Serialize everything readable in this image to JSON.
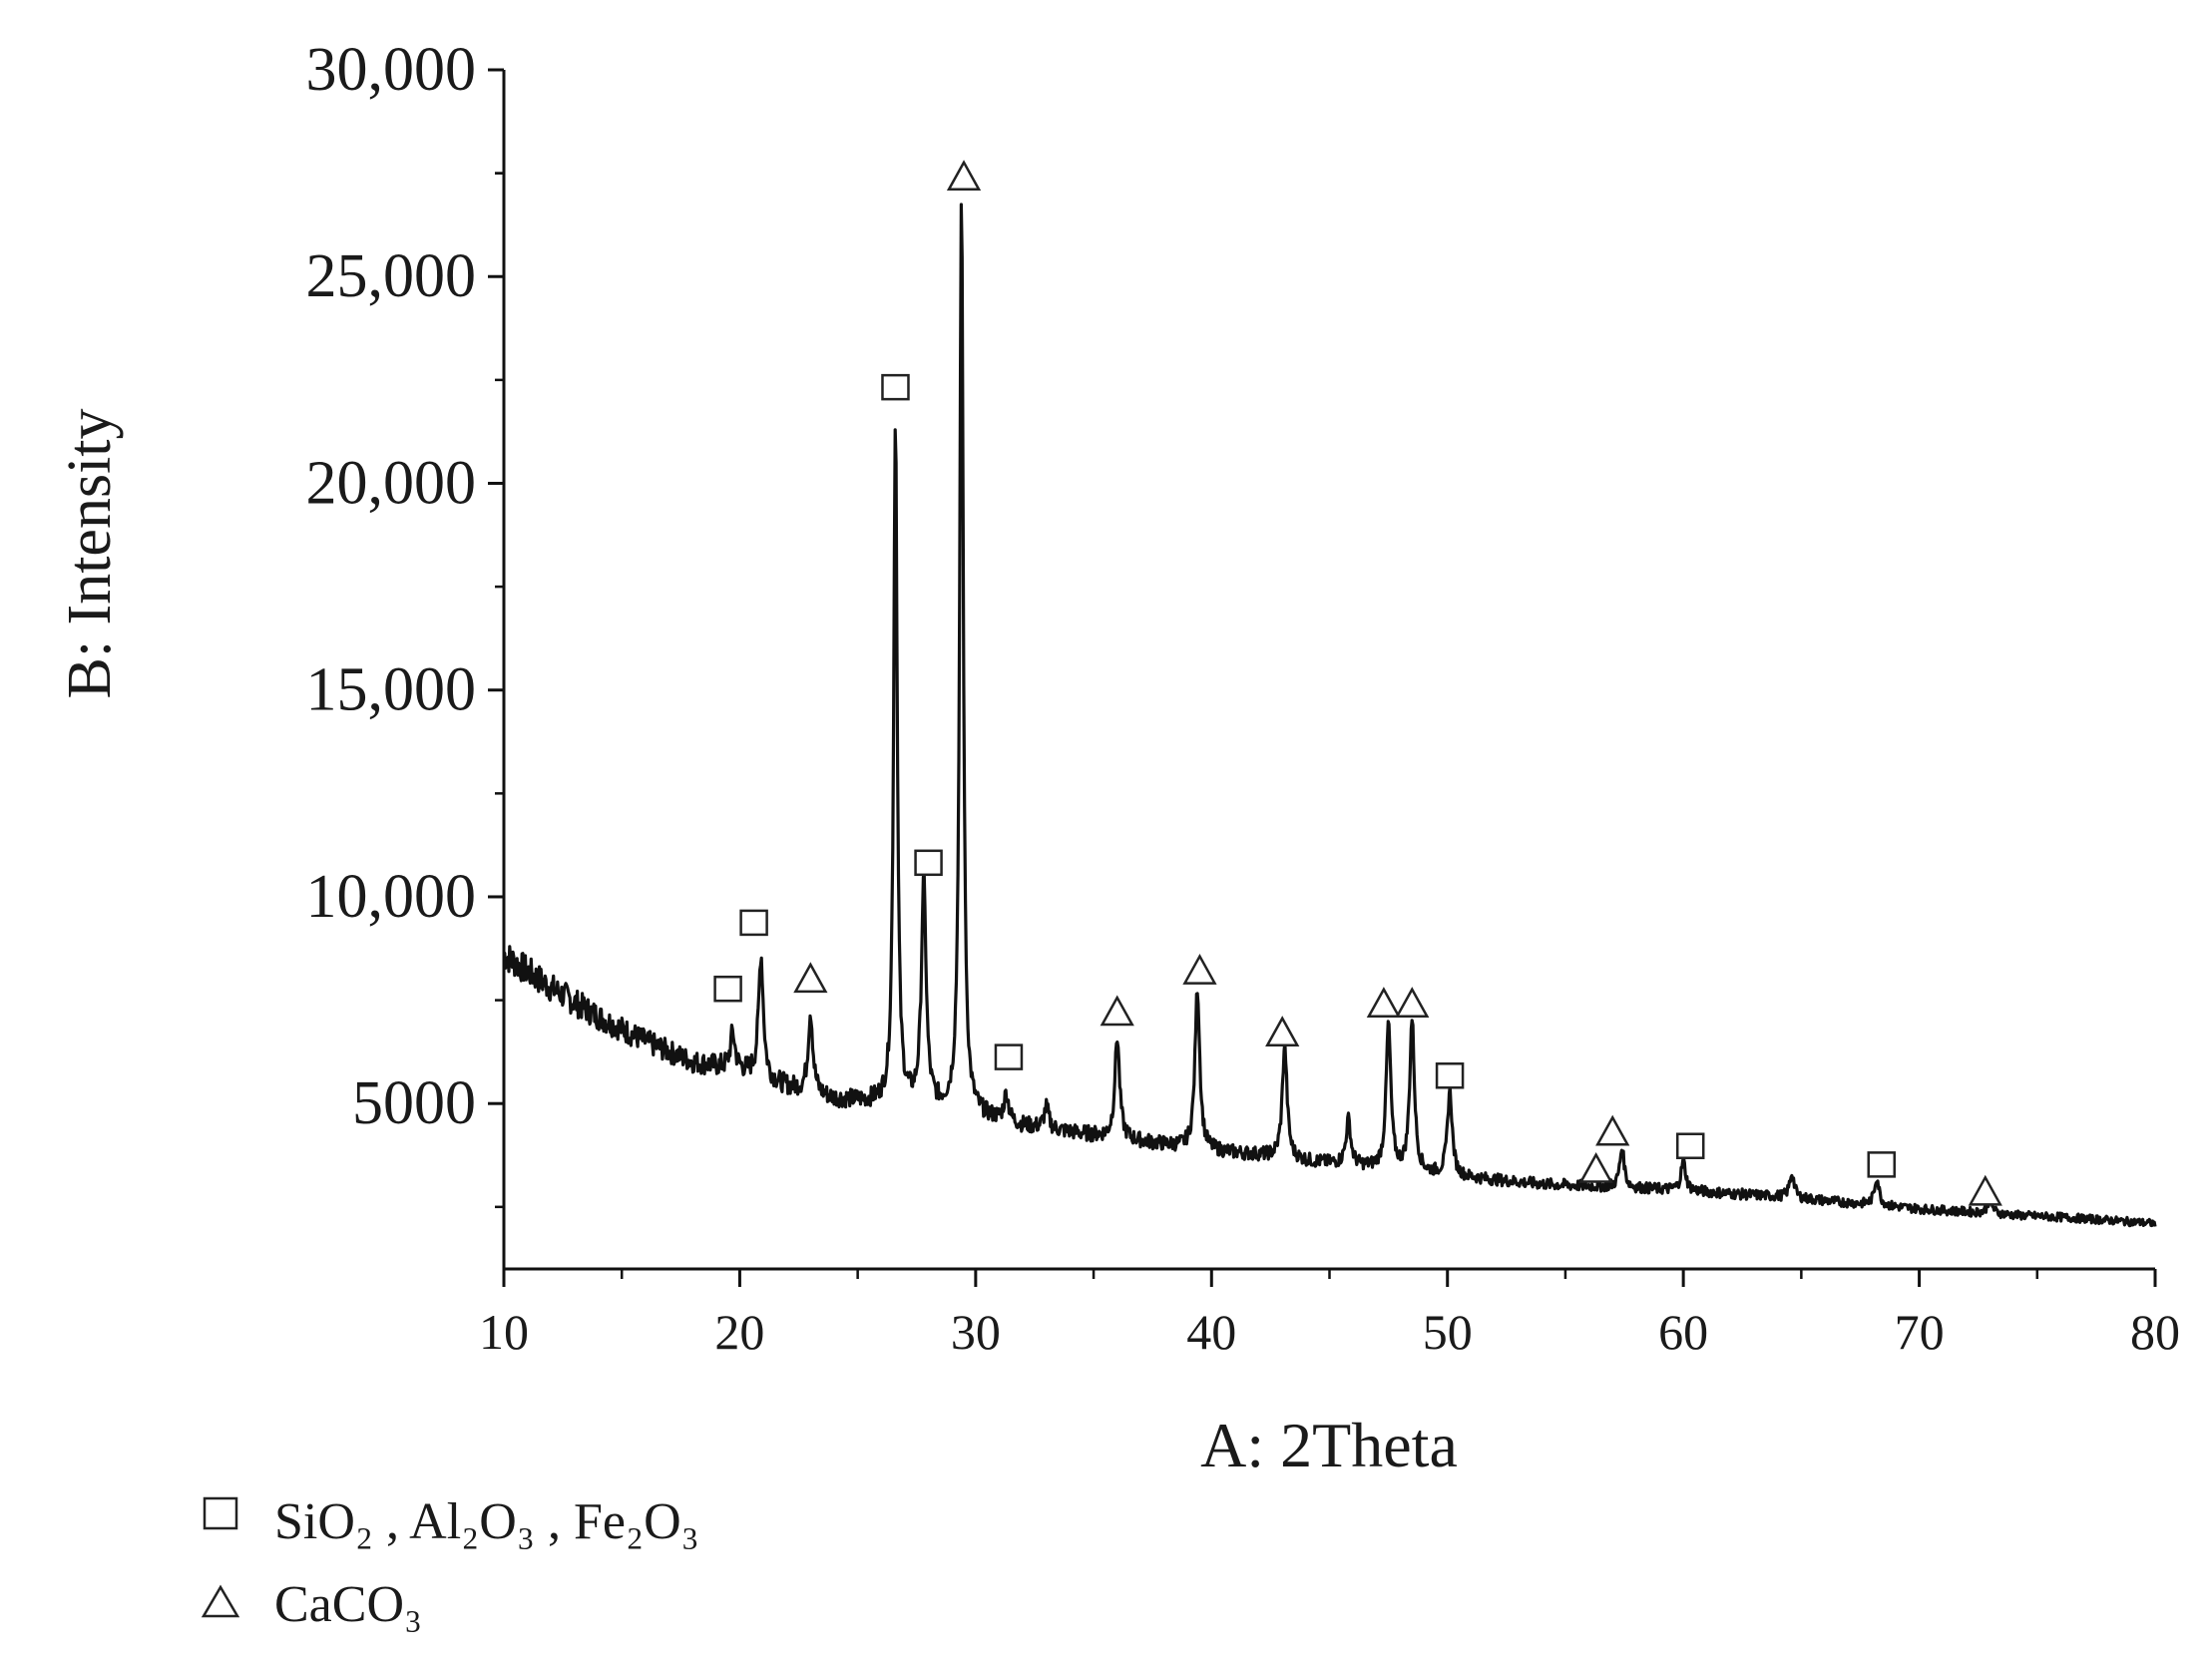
{
  "chart_data": {
    "type": "line",
    "title": "",
    "xlabel": "A: 2Theta",
    "ylabel": "B: Intensity",
    "xlim": [
      10,
      80
    ],
    "ylim": [
      1000,
      30000
    ],
    "x_ticks": [
      10,
      20,
      30,
      40,
      50,
      60,
      70,
      80
    ],
    "x_tick_labels": [
      "10",
      "20",
      "30",
      "40",
      "50",
      "60",
      "70",
      "80"
    ],
    "y_ticks": [
      5000,
      10000,
      15000,
      20000,
      25000,
      30000
    ],
    "y_tick_labels": [
      "5000",
      "10,000",
      "15,000",
      "20,000",
      "25,000",
      "30,000"
    ],
    "grid": false,
    "legend_position": "bottom-left",
    "series": [
      {
        "baseline": [
          [
            10,
            8600
          ],
          [
            12,
            7800
          ],
          [
            14,
            7100
          ],
          [
            16,
            6500
          ],
          [
            18,
            6000
          ],
          [
            20,
            5800
          ],
          [
            22,
            5400
          ],
          [
            24,
            5100
          ],
          [
            26,
            5000
          ],
          [
            28,
            4900
          ],
          [
            30,
            4700
          ],
          [
            32,
            4450
          ],
          [
            34,
            4300
          ],
          [
            36,
            4150
          ],
          [
            38,
            4000
          ],
          [
            40,
            3850
          ],
          [
            42,
            3750
          ],
          [
            44,
            3600
          ],
          [
            46,
            3500
          ],
          [
            48,
            3350
          ],
          [
            50,
            3250
          ],
          [
            52,
            3150
          ],
          [
            54,
            3050
          ],
          [
            56,
            3000
          ],
          [
            58,
            2950
          ],
          [
            60,
            2900
          ],
          [
            62,
            2820
          ],
          [
            64,
            2750
          ],
          [
            66,
            2650
          ],
          [
            68,
            2550
          ],
          [
            70,
            2450
          ],
          [
            72,
            2380
          ],
          [
            74,
            2300
          ],
          [
            76,
            2250
          ],
          [
            78,
            2180
          ],
          [
            80,
            2100
          ]
        ],
        "peaks": [
          [
            19.7,
            6700
          ],
          [
            20.9,
            8600
          ],
          [
            23.0,
            7200
          ],
          [
            26.6,
            21600
          ],
          [
            27.8,
            10300
          ],
          [
            29.4,
            27000
          ],
          [
            31.3,
            5200
          ],
          [
            33.0,
            4900
          ],
          [
            36.0,
            6600
          ],
          [
            39.4,
            7800
          ],
          [
            43.1,
            6400
          ],
          [
            45.8,
            4600
          ],
          [
            47.5,
            6900
          ],
          [
            48.5,
            7000
          ],
          [
            50.1,
            5300
          ],
          [
            57.4,
            3900
          ],
          [
            60.0,
            3600
          ],
          [
            64.6,
            3300
          ],
          [
            68.2,
            3200
          ],
          [
            73.0,
            2700
          ]
        ]
      }
    ],
    "markers": [
      {
        "x": 19.5,
        "y": 7750,
        "shape": "square"
      },
      {
        "x": 20.6,
        "y": 9350,
        "shape": "square"
      },
      {
        "x": 23.0,
        "y": 8000,
        "shape": "triangle"
      },
      {
        "x": 26.6,
        "y": 22300,
        "shape": "square"
      },
      {
        "x": 28.0,
        "y": 10800,
        "shape": "square"
      },
      {
        "x": 29.5,
        "y": 27400,
        "shape": "triangle"
      },
      {
        "x": 31.4,
        "y": 6100,
        "shape": "square"
      },
      {
        "x": 36.0,
        "y": 7200,
        "shape": "triangle"
      },
      {
        "x": 39.5,
        "y": 8200,
        "shape": "triangle"
      },
      {
        "x": 43.0,
        "y": 6700,
        "shape": "triangle"
      },
      {
        "x": 47.3,
        "y": 7400,
        "shape": "triangle"
      },
      {
        "x": 48.5,
        "y": 7400,
        "shape": "triangle"
      },
      {
        "x": 50.1,
        "y": 5650,
        "shape": "square"
      },
      {
        "x": 56.3,
        "y": 3400,
        "shape": "triangle"
      },
      {
        "x": 57.0,
        "y": 4300,
        "shape": "triangle"
      },
      {
        "x": 60.3,
        "y": 3950,
        "shape": "square"
      },
      {
        "x": 68.4,
        "y": 3500,
        "shape": "square"
      },
      {
        "x": 72.8,
        "y": 2850,
        "shape": "triangle"
      }
    ],
    "legend": [
      {
        "shape": "square",
        "name": "SiO₂ , Al₂O₃ , Fe₂O₃"
      },
      {
        "shape": "triangle",
        "name": "CaCO₃"
      }
    ],
    "colors": {
      "line": "#111111",
      "text": "#1a1a1a",
      "marker_stroke": "#222222"
    }
  }
}
